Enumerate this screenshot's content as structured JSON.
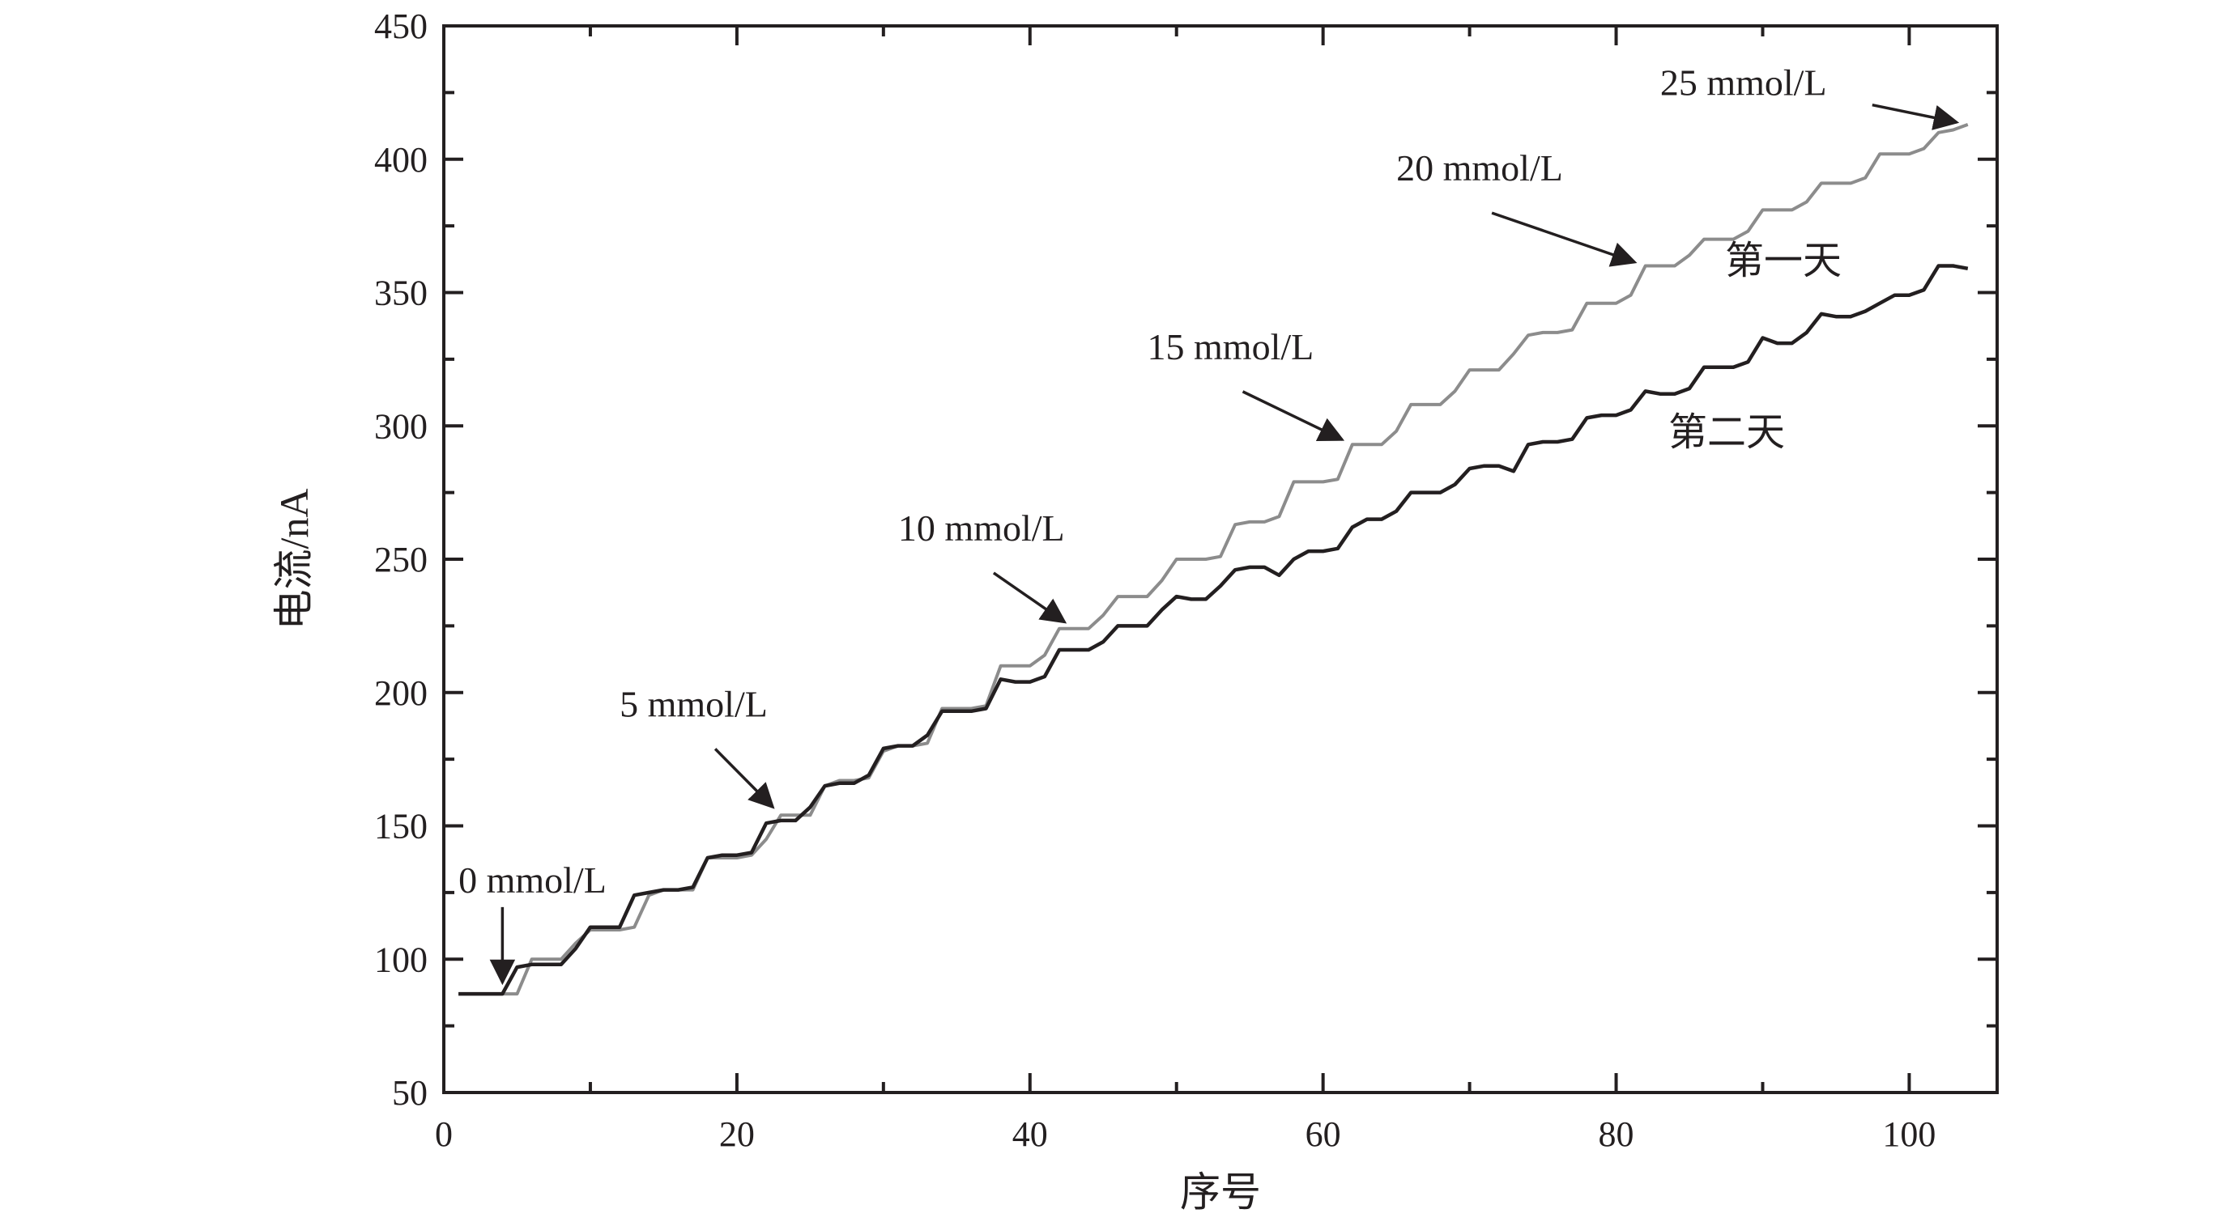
{
  "chart_data": {
    "type": "line",
    "title": "",
    "xlabel": "序号",
    "ylabel": "电流/nA",
    "xlim": [
      0,
      106
    ],
    "ylim": [
      50,
      450
    ],
    "xticks": [
      0,
      20,
      40,
      60,
      80,
      100
    ],
    "yticks": [
      50,
      100,
      150,
      200,
      250,
      300,
      350,
      400,
      450
    ],
    "grid": false,
    "series": [
      {
        "name": "第一天",
        "color": "#8c8c8c",
        "x": [
          1,
          2,
          3,
          4,
          5,
          6,
          7,
          8,
          9,
          10,
          11,
          12,
          13,
          14,
          15,
          16,
          17,
          18,
          19,
          20,
          21,
          22,
          23,
          24,
          25,
          26,
          27,
          28,
          29,
          30,
          31,
          32,
          33,
          34,
          35,
          36,
          37,
          38,
          39,
          40,
          41,
          42,
          43,
          44,
          45,
          46,
          47,
          48,
          49,
          50,
          51,
          52,
          53,
          54,
          55,
          56,
          57,
          58,
          59,
          60,
          61,
          62,
          63,
          64,
          65,
          66,
          67,
          68,
          69,
          70,
          71,
          72,
          73,
          74,
          75,
          76,
          77,
          78,
          79,
          80,
          81,
          82,
          83,
          84,
          85,
          86,
          87,
          88,
          89,
          90,
          91,
          92,
          93,
          94,
          95,
          96,
          97,
          98,
          99,
          100,
          101,
          102,
          103,
          104
        ],
        "y": [
          87,
          87,
          87,
          87,
          87,
          100,
          100,
          100,
          106,
          111,
          111,
          111,
          112,
          124,
          126,
          126,
          126,
          138,
          138,
          138,
          139,
          145,
          154,
          154,
          154,
          165,
          167,
          167,
          168,
          178,
          180,
          180,
          181,
          194,
          194,
          194,
          195,
          210,
          210,
          210,
          214,
          224,
          224,
          224,
          229,
          236,
          236,
          236,
          242,
          250,
          250,
          250,
          251,
          263,
          264,
          264,
          266,
          279,
          279,
          279,
          280,
          293,
          293,
          293,
          298,
          308,
          308,
          308,
          313,
          321,
          321,
          321,
          327,
          334,
          335,
          335,
          336,
          346,
          346,
          346,
          349,
          360,
          360,
          360,
          364,
          370,
          370,
          370,
          373,
          381,
          381,
          381,
          384,
          391,
          391,
          391,
          393,
          402,
          402,
          402,
          404,
          410,
          411,
          413
        ]
      },
      {
        "name": "第二天",
        "color": "#231f20",
        "x": [
          1,
          2,
          3,
          4,
          5,
          6,
          7,
          8,
          9,
          10,
          11,
          12,
          13,
          14,
          15,
          16,
          17,
          18,
          19,
          20,
          21,
          22,
          23,
          24,
          25,
          26,
          27,
          28,
          29,
          30,
          31,
          32,
          33,
          34,
          35,
          36,
          37,
          38,
          39,
          40,
          41,
          42,
          43,
          44,
          45,
          46,
          47,
          48,
          49,
          50,
          51,
          52,
          53,
          54,
          55,
          56,
          57,
          58,
          59,
          60,
          61,
          62,
          63,
          64,
          65,
          66,
          67,
          68,
          69,
          70,
          71,
          72,
          73,
          74,
          75,
          76,
          77,
          78,
          79,
          80,
          81,
          82,
          83,
          84,
          85,
          86,
          87,
          88,
          89,
          90,
          91,
          92,
          93,
          94,
          95,
          96,
          97,
          98,
          99,
          100,
          101,
          102,
          103,
          104
        ],
        "y": [
          87,
          87,
          87,
          87,
          97,
          98,
          98,
          98,
          104,
          112,
          112,
          112,
          124,
          125,
          126,
          126,
          127,
          138,
          139,
          139,
          140,
          151,
          152,
          152,
          157,
          165,
          166,
          166,
          169,
          179,
          180,
          180,
          184,
          193,
          193,
          193,
          194,
          205,
          204,
          204,
          206,
          216,
          216,
          216,
          219,
          225,
          225,
          225,
          231,
          236,
          235,
          235,
          240,
          246,
          247,
          247,
          244,
          250,
          253,
          253,
          254,
          262,
          265,
          265,
          268,
          275,
          275,
          275,
          278,
          284,
          285,
          285,
          283,
          293,
          294,
          294,
          295,
          303,
          304,
          304,
          306,
          313,
          312,
          312,
          314,
          322,
          322,
          322,
          324,
          333,
          331,
          331,
          335,
          342,
          341,
          341,
          343,
          346,
          349,
          349,
          351,
          360,
          360,
          359
        ]
      }
    ],
    "annotations": [
      {
        "text": "0 mmol/L",
        "x": 4,
        "y": 87,
        "label_pos": [
          1,
          125
        ]
      },
      {
        "text": "5 mmol/L",
        "x": 23,
        "y": 154,
        "label_pos": [
          12,
          191
        ]
      },
      {
        "text": "10 mmol/L",
        "x": 43,
        "y": 224,
        "label_pos": [
          31,
          257
        ]
      },
      {
        "text": "15 mmol/L",
        "x": 62,
        "y": 293,
        "label_pos": [
          48,
          325
        ]
      },
      {
        "text": "20 mmol/L",
        "x": 82,
        "y": 360,
        "label_pos": [
          65,
          392
        ]
      },
      {
        "text": "25 mmol/L",
        "x": 104,
        "y": 413,
        "label_pos": [
          83,
          424
        ]
      }
    ]
  }
}
